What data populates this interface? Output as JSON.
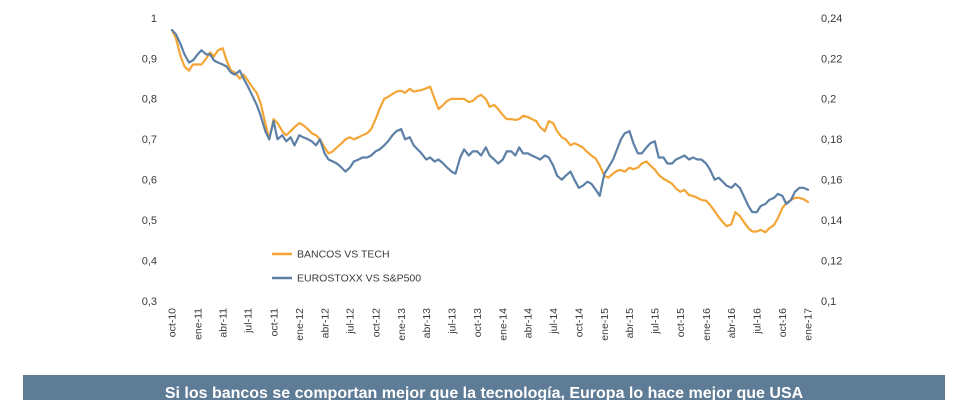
{
  "chart_data": {
    "type": "line",
    "grid": false,
    "legend_position": "inside-lower-left",
    "xlim": [
      "2010-10-01",
      "2017-01-01"
    ],
    "x_ticks": [
      "2010-10-01",
      "2011-01-01",
      "2011-04-01",
      "2011-07-01",
      "2011-10-01",
      "2012-01-01",
      "2012-04-01",
      "2012-07-01",
      "2012-10-01",
      "2013-01-01",
      "2013-04-01",
      "2013-07-01",
      "2013-10-01",
      "2014-01-01",
      "2014-04-01",
      "2014-07-01",
      "2014-10-01",
      "2015-01-01",
      "2015-04-01",
      "2015-07-01",
      "2015-10-01",
      "2016-01-01",
      "2016-04-01",
      "2016-07-01",
      "2016-10-01",
      "2017-01-01"
    ],
    "x_tick_labels": [
      "oct-10",
      "ene-11",
      "abr-11",
      "jul-11",
      "oct-11",
      "ene-12",
      "abr-12",
      "jul-12",
      "oct-12",
      "ene-13",
      "abr-13",
      "jul-13",
      "oct-13",
      "ene-14",
      "abr-14",
      "jul-14",
      "oct-14",
      "ene-15",
      "abr-15",
      "jul-15",
      "oct-15",
      "ene-16",
      "abr-16",
      "jul-16",
      "oct-16",
      "ene-17"
    ],
    "y_left": {
      "lim": [
        0.3,
        1
      ],
      "ticks": [
        1,
        0.9,
        0.8,
        0.7,
        0.6,
        0.5,
        0.4,
        0.3
      ],
      "tick_labels": [
        "1",
        "0,9",
        "0,8",
        "0,7",
        "0,6",
        "0,5",
        "0,4",
        "0,3"
      ]
    },
    "y_right": {
      "lim": [
        0.1,
        0.24
      ],
      "ticks": [
        0.24,
        0.22,
        0.2,
        0.18,
        0.16,
        0.14,
        0.12,
        0.1
      ],
      "tick_labels": [
        "0,24",
        "0,22",
        "0,2",
        "0,18",
        "0,16",
        "0,14",
        "0,12",
        "0,1"
      ]
    },
    "x": [
      "2010-10-01",
      "2010-10-15",
      "2010-11-01",
      "2010-11-15",
      "2010-12-01",
      "2010-12-15",
      "2011-01-01",
      "2011-01-15",
      "2011-02-01",
      "2011-02-15",
      "2011-03-01",
      "2011-03-15",
      "2011-04-01",
      "2011-04-15",
      "2011-05-01",
      "2011-05-15",
      "2011-06-01",
      "2011-06-15",
      "2011-07-01",
      "2011-07-15",
      "2011-08-01",
      "2011-08-15",
      "2011-09-01",
      "2011-09-15",
      "2011-10-01",
      "2011-10-15",
      "2011-11-01",
      "2011-11-15",
      "2011-12-01",
      "2011-12-15",
      "2012-01-01",
      "2012-01-15",
      "2012-02-01",
      "2012-02-15",
      "2012-03-01",
      "2012-03-15",
      "2012-04-01",
      "2012-04-15",
      "2012-05-01",
      "2012-05-15",
      "2012-06-01",
      "2012-06-15",
      "2012-07-01",
      "2012-07-15",
      "2012-08-01",
      "2012-08-15",
      "2012-09-01",
      "2012-09-15",
      "2012-10-01",
      "2012-10-15",
      "2012-11-01",
      "2012-11-15",
      "2012-12-01",
      "2012-12-15",
      "2013-01-01",
      "2013-01-15",
      "2013-02-01",
      "2013-02-15",
      "2013-03-01",
      "2013-03-15",
      "2013-04-01",
      "2013-04-15",
      "2013-05-01",
      "2013-05-15",
      "2013-06-01",
      "2013-06-15",
      "2013-07-01",
      "2013-07-15",
      "2013-08-01",
      "2013-08-15",
      "2013-09-01",
      "2013-09-15",
      "2013-10-01",
      "2013-10-15",
      "2013-11-01",
      "2013-11-15",
      "2013-12-01",
      "2013-12-15",
      "2014-01-01",
      "2014-01-15",
      "2014-02-01",
      "2014-02-15",
      "2014-03-01",
      "2014-03-15",
      "2014-04-01",
      "2014-04-15",
      "2014-05-01",
      "2014-05-15",
      "2014-06-01",
      "2014-06-15",
      "2014-07-01",
      "2014-07-15",
      "2014-08-01",
      "2014-08-15",
      "2014-09-01",
      "2014-09-15",
      "2014-10-01",
      "2014-10-15",
      "2014-11-01",
      "2014-11-15",
      "2014-12-01",
      "2014-12-15",
      "2015-01-01",
      "2015-01-15",
      "2015-02-01",
      "2015-02-15",
      "2015-03-01",
      "2015-03-15",
      "2015-04-01",
      "2015-04-15",
      "2015-05-01",
      "2015-05-15",
      "2015-06-01",
      "2015-06-15",
      "2015-07-01",
      "2015-07-15",
      "2015-08-01",
      "2015-08-15",
      "2015-09-01",
      "2015-09-15",
      "2015-10-01",
      "2015-10-15",
      "2015-11-01",
      "2015-11-15",
      "2015-12-01",
      "2015-12-15",
      "2016-01-01",
      "2016-01-15",
      "2016-02-01",
      "2016-02-15",
      "2016-03-01",
      "2016-03-15",
      "2016-04-01",
      "2016-04-15",
      "2016-05-01",
      "2016-05-15",
      "2016-06-01",
      "2016-06-15",
      "2016-07-01",
      "2016-07-15",
      "2016-08-01",
      "2016-08-15",
      "2016-09-01",
      "2016-09-15",
      "2016-10-01",
      "2016-10-15",
      "2016-11-01",
      "2016-11-15",
      "2016-12-01",
      "2016-12-15",
      "2017-01-01"
    ],
    "series": [
      {
        "name": "BANCOS VS TECH",
        "axis": "left",
        "color": "#f3a536",
        "values": [
          0.97,
          0.95,
          0.905,
          0.88,
          0.87,
          0.885,
          0.885,
          0.885,
          0.9,
          0.915,
          0.905,
          0.92,
          0.925,
          0.895,
          0.87,
          0.865,
          0.85,
          0.86,
          0.845,
          0.83,
          0.815,
          0.79,
          0.74,
          0.7,
          0.75,
          0.74,
          0.72,
          0.71,
          0.72,
          0.73,
          0.74,
          0.735,
          0.725,
          0.715,
          0.71,
          0.7,
          0.68,
          0.665,
          0.67,
          0.68,
          0.69,
          0.7,
          0.705,
          0.7,
          0.705,
          0.71,
          0.715,
          0.725,
          0.75,
          0.775,
          0.8,
          0.805,
          0.812,
          0.818,
          0.82,
          0.815,
          0.825,
          0.818,
          0.82,
          0.822,
          0.826,
          0.83,
          0.8,
          0.775,
          0.785,
          0.795,
          0.8,
          0.8,
          0.8,
          0.8,
          0.792,
          0.795,
          0.805,
          0.81,
          0.8,
          0.78,
          0.785,
          0.775,
          0.76,
          0.75,
          0.75,
          0.748,
          0.75,
          0.758,
          0.755,
          0.75,
          0.745,
          0.73,
          0.72,
          0.745,
          0.74,
          0.72,
          0.705,
          0.7,
          0.685,
          0.69,
          0.685,
          0.68,
          0.668,
          0.66,
          0.652,
          0.635,
          0.61,
          0.605,
          0.615,
          0.622,
          0.624,
          0.62,
          0.63,
          0.626,
          0.63,
          0.64,
          0.645,
          0.635,
          0.625,
          0.612,
          0.602,
          0.597,
          0.59,
          0.578,
          0.57,
          0.575,
          0.562,
          0.56,
          0.555,
          0.55,
          0.548,
          0.538,
          0.522,
          0.508,
          0.495,
          0.485,
          0.49,
          0.52,
          0.51,
          0.496,
          0.48,
          0.472,
          0.472,
          0.476,
          0.47,
          0.48,
          0.488,
          0.505,
          0.53,
          0.542,
          0.55,
          0.555,
          0.555,
          0.552,
          0.545
        ]
      },
      {
        "name": "EUROSTOXX VS S&P500",
        "axis": "right",
        "color": "#5d80a6",
        "values": [
          0.234,
          0.232,
          0.227,
          0.222,
          0.218,
          0.219,
          0.222,
          0.224,
          0.222,
          0.222,
          0.219,
          0.218,
          0.217,
          0.216,
          0.213,
          0.212,
          0.214,
          0.21,
          0.206,
          0.202,
          0.197,
          0.192,
          0.184,
          0.18,
          0.189,
          0.18,
          0.182,
          0.179,
          0.181,
          0.177,
          0.182,
          0.181,
          0.18,
          0.179,
          0.177,
          0.18,
          0.173,
          0.17,
          0.169,
          0.168,
          0.166,
          0.164,
          0.166,
          0.169,
          0.17,
          0.171,
          0.171,
          0.172,
          0.174,
          0.175,
          0.177,
          0.179,
          0.182,
          0.184,
          0.185,
          0.18,
          0.181,
          0.177,
          0.175,
          0.173,
          0.17,
          0.171,
          0.169,
          0.17,
          0.168,
          0.166,
          0.164,
          0.163,
          0.171,
          0.175,
          0.172,
          0.174,
          0.174,
          0.172,
          0.176,
          0.172,
          0.17,
          0.168,
          0.17,
          0.174,
          0.174,
          0.172,
          0.176,
          0.173,
          0.173,
          0.172,
          0.171,
          0.17,
          0.172,
          0.171,
          0.167,
          0.162,
          0.16,
          0.162,
          0.164,
          0.16,
          0.156,
          0.157,
          0.159,
          0.158,
          0.155,
          0.152,
          0.163,
          0.166,
          0.17,
          0.175,
          0.18,
          0.183,
          0.184,
          0.178,
          0.173,
          0.173,
          0.176,
          0.178,
          0.179,
          0.171,
          0.171,
          0.168,
          0.168,
          0.17,
          0.171,
          0.172,
          0.17,
          0.171,
          0.17,
          0.17,
          0.168,
          0.165,
          0.16,
          0.161,
          0.159,
          0.157,
          0.156,
          0.158,
          0.156,
          0.152,
          0.147,
          0.144,
          0.144,
          0.147,
          0.148,
          0.15,
          0.151,
          0.153,
          0.152,
          0.148,
          0.15,
          0.154,
          0.156,
          0.156,
          0.155
        ]
      }
    ]
  },
  "caption": {
    "text": "Si los bancos se comportan mejor que la tecnología, Europa lo hace mejor que USA",
    "background": "#5f7c97",
    "text_color": "#ffffff"
  }
}
